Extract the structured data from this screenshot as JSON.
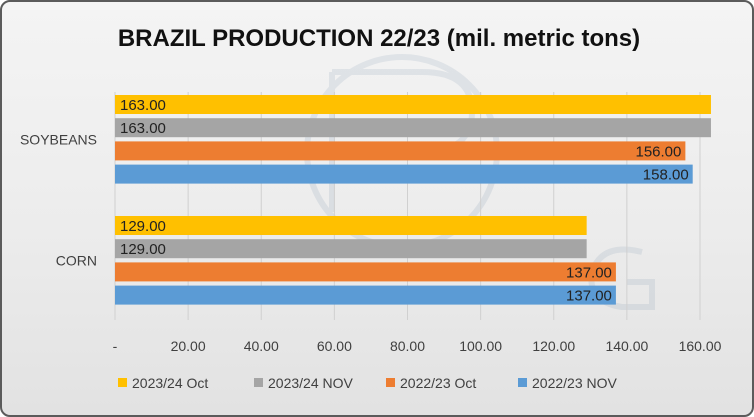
{
  "chart_data": {
    "type": "bar",
    "orientation": "horizontal",
    "title": "BRAZIL PRODUCTION 22/23 (mil. metric tons)",
    "categories": [
      "SOYBEANS",
      "CORN"
    ],
    "series": [
      {
        "name": "2023/24 Oct",
        "color": "#ffc000",
        "values": [
          163.0,
          129.0
        ],
        "labels": [
          "163.00",
          "129.00"
        ]
      },
      {
        "name": "2023/24 NOV",
        "color": "#a5a5a5",
        "values": [
          163.0,
          129.0
        ],
        "labels": [
          "163.00",
          "129.00"
        ]
      },
      {
        "name": "2022/23 Oct",
        "color": "#ed7d31",
        "values": [
          156.0,
          137.0
        ],
        "labels": [
          "156.00",
          "137.00"
        ]
      },
      {
        "name": "2022/23 NOV",
        "color": "#5b9bd5",
        "values": [
          158.0,
          137.0
        ],
        "labels": [
          "158.00",
          "137.00"
        ]
      }
    ],
    "xlim": [
      0,
      160
    ],
    "xticks": [
      0,
      20,
      40,
      60,
      80,
      100,
      120,
      140,
      160
    ],
    "xtick_labels": [
      "-",
      "20.00",
      "40.00",
      "60.00",
      "80.00",
      "100.00",
      "120.00",
      "140.00",
      "160.00"
    ],
    "grid": "vertical",
    "legend": "bottom"
  }
}
